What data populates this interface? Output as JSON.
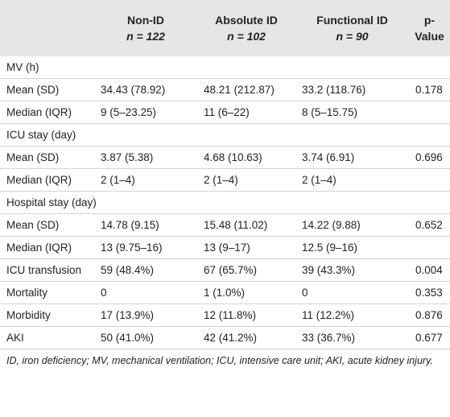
{
  "table": {
    "header": [
      {
        "name": "",
        "n": ""
      },
      {
        "name": "Non-ID",
        "n": "n = 122"
      },
      {
        "name": "Absolute ID",
        "n": "n = 102"
      },
      {
        "name": "Functional ID",
        "n": "n = 90"
      },
      {
        "name": "p-Value",
        "n": ""
      }
    ],
    "rows": [
      [
        "MV (h)"
      ],
      [
        "Mean (SD)",
        "34.43 (78.92)",
        "48.21 (212.87)",
        "33.2 (118.76)",
        "0.178"
      ],
      [
        "Median (IQR)",
        "9 (5–23.25)",
        "11 (6–22)",
        "8 (5–15.75)",
        ""
      ],
      [
        "ICU stay (day)"
      ],
      [
        "Mean (SD)",
        "3.87 (5.38)",
        "4.68 (10.63)",
        "3.74 (6.91)",
        "0.696"
      ],
      [
        "Median (IQR)",
        "2 (1–4)",
        "2 (1–4)",
        "2 (1–4)",
        ""
      ],
      [
        "Hospital stay (day)"
      ],
      [
        "Mean (SD)",
        "14.78 (9.15)",
        "15.48 (11.02)",
        "14.22 (9.88)",
        "0.652"
      ],
      [
        "Median (IQR)",
        "13 (9.75–16)",
        "13 (9–17)",
        "12.5 (9–16)",
        ""
      ],
      [
        "ICU transfusion",
        "59 (48.4%)",
        "67 (65.7%)",
        "39 (43.3%)",
        "0.004"
      ],
      [
        "Mortality",
        "0",
        "1 (1.0%)",
        "0",
        "0.353"
      ],
      [
        "Morbidity",
        "17 (13.9%)",
        "12 (11.8%)",
        "11 (12.2%)",
        "0.876"
      ],
      [
        "AKI",
        "50 (41.0%)",
        "42 (41.2%)",
        "33 (36.7%)",
        "0.677"
      ]
    ],
    "footnote": "ID, iron deficiency; MV, mechanical ventilation; ICU, intensive care unit; AKI, acute kidney injury."
  }
}
